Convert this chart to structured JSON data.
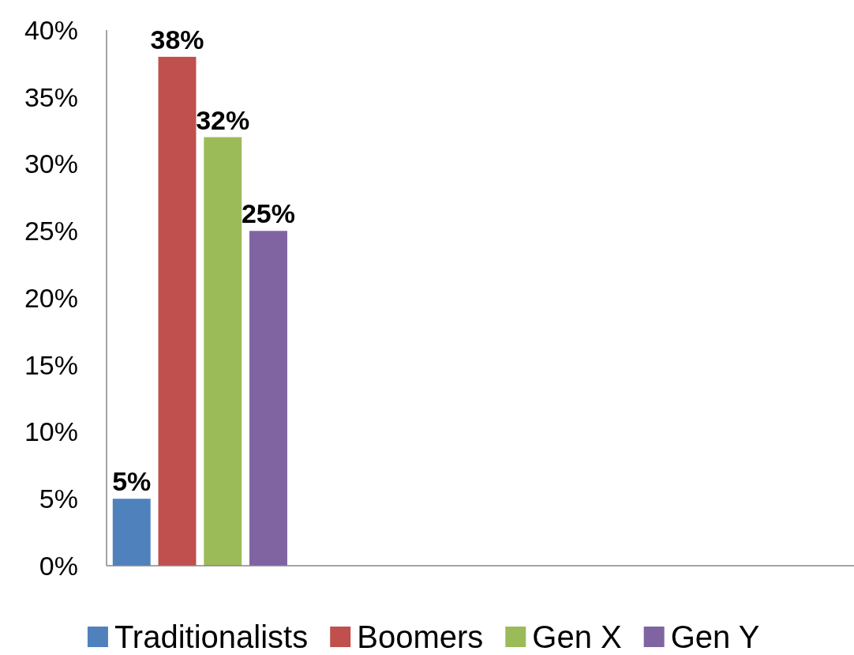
{
  "chart_data": {
    "type": "bar",
    "categories": [
      null,
      null,
      null,
      null
    ],
    "series": [
      {
        "name": "Traditionalists",
        "color": "#4f81bd",
        "values": [
          5,
          null,
          null,
          null
        ],
        "value_labels": [
          "5%",
          null,
          null,
          null
        ]
      },
      {
        "name": "Boomers",
        "color": "#c0504d",
        "values": [
          38,
          null,
          null,
          null
        ],
        "value_labels": [
          "38%",
          null,
          null,
          null
        ]
      },
      {
        "name": "Gen X",
        "color": "#9bbb59",
        "values": [
          32,
          null,
          null,
          null
        ],
        "value_labels": [
          "32%",
          null,
          null,
          null
        ]
      },
      {
        "name": "Gen Y",
        "color": "#8064a2",
        "values": [
          25,
          null,
          null,
          null
        ],
        "value_labels": [
          "25%",
          null,
          null,
          null
        ]
      }
    ],
    "ylim": [
      0,
      40
    ],
    "yticks": [
      {
        "value": 0,
        "label": "0%"
      },
      {
        "value": 5,
        "label": "5%"
      },
      {
        "value": 10,
        "label": "10%"
      },
      {
        "value": 15,
        "label": "15%"
      },
      {
        "value": 20,
        "label": "20%"
      },
      {
        "value": 25,
        "label": "25%"
      },
      {
        "value": 30,
        "label": "30%"
      },
      {
        "value": 35,
        "label": "35%"
      },
      {
        "value": 40,
        "label": "40%"
      }
    ],
    "grid": false,
    "legend": "bottom"
  }
}
